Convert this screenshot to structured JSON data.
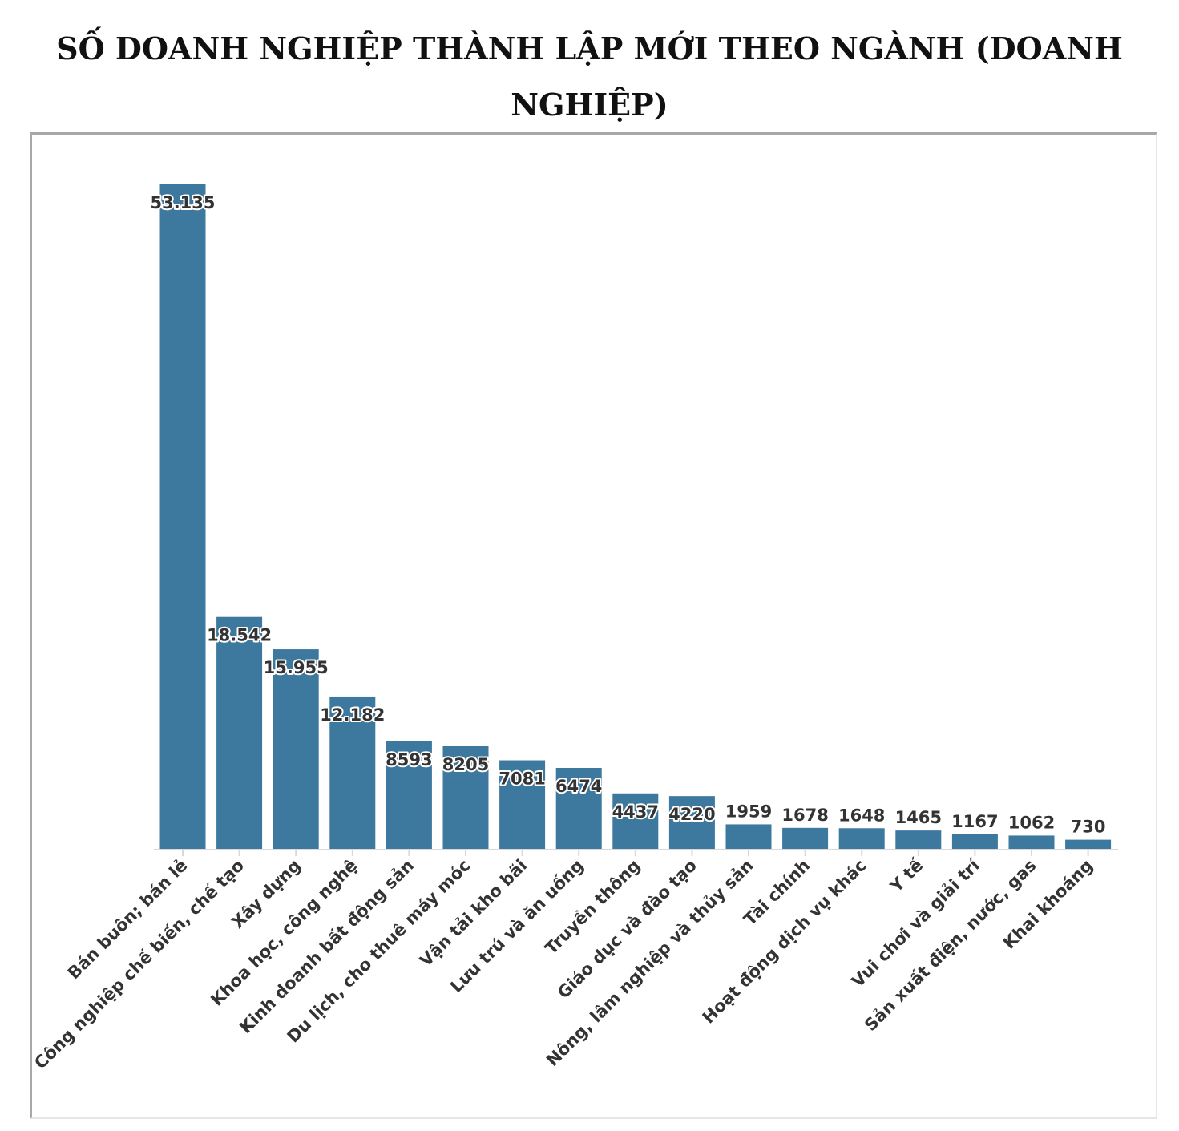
{
  "title": {
    "line1": "SỐ DOANH NGHIỆP THÀNH LẬP MỚI THEO NGÀNH (DOANH",
    "line2": "NGHIỆP)"
  },
  "colors": {
    "bar": "#3d789e",
    "axis": "#d9d9d9",
    "text": "#333333"
  },
  "chart_data": {
    "type": "bar",
    "title": "SỐ DOANH NGHIỆP THÀNH LẬP MỚI THEO NGÀNH (DOANH NGHIỆP)",
    "xlabel": "",
    "ylabel": "",
    "grid": false,
    "categories": [
      "Bán buôn; bán lẻ",
      "Công nghiệp chế biến, chế tạo",
      "Xây dựng",
      "Khoa học, công nghệ",
      "Kinh doanh bất động sản",
      "Du lịch, cho thuê máy móc",
      "Vận tải kho bãi",
      "Lưu trú và ăn uống",
      "Truyền thông",
      "Giáo dục và đào tạo",
      "Nông, lâm nghiệp và thủy sản",
      "Tài chính",
      "Hoạt động dịch vụ khác",
      "Y tế",
      "Vui chơi và giải trí",
      "Sản xuất điện, nước, gas",
      "Khai khoáng"
    ],
    "values": [
      53135,
      18542,
      15955,
      12182,
      8593,
      8205,
      7081,
      6474,
      4437,
      4220,
      1959,
      1678,
      1648,
      1465,
      1167,
      1062,
      730
    ],
    "value_labels": [
      "53.135",
      "18.542",
      "15.955",
      "12.182",
      "8593",
      "8205",
      "7081",
      "6474",
      "4437",
      "4220",
      "1959",
      "1678",
      "1648",
      "1465",
      "1167",
      "1062",
      "730"
    ]
  }
}
